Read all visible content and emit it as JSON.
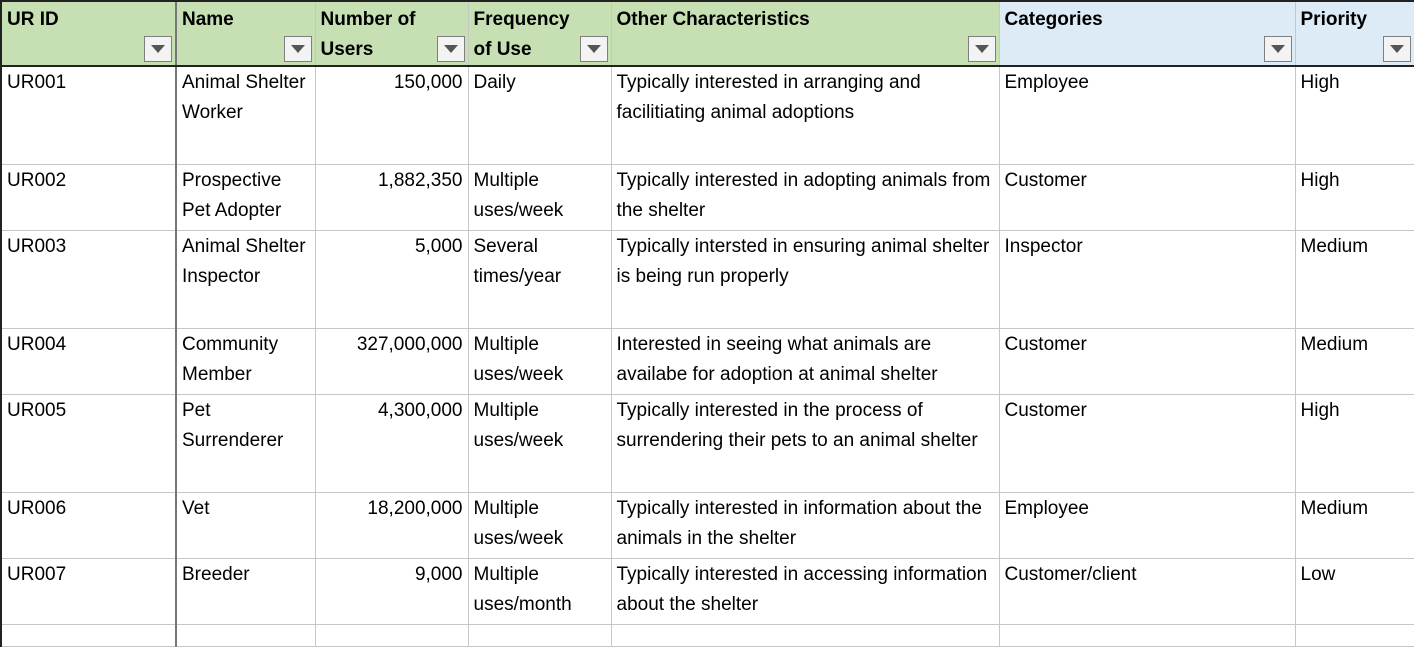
{
  "columns": [
    {
      "label": "UR ID"
    },
    {
      "label": "Name"
    },
    {
      "label": "Number of Users"
    },
    {
      "label": "Frequency of Use"
    },
    {
      "label": "Other Characteristics"
    },
    {
      "label": "Categories"
    },
    {
      "label": "Priority"
    }
  ],
  "rows": [
    {
      "id": "UR001",
      "name": "Animal Shelter Worker",
      "users": "150,000",
      "frequency": "Daily",
      "characteristics": "Typically interested in arranging and facilitiating animal adoptions",
      "category": "Employee",
      "priority": "High"
    },
    {
      "id": "UR002",
      "name": "Prospective Pet Adopter",
      "users": "1,882,350",
      "frequency": "Multiple uses/week",
      "characteristics": "Typically interested in adopting animals from the shelter",
      "category": "Customer",
      "priority": "High"
    },
    {
      "id": "UR003",
      "name": "Animal Shelter Inspector",
      "users": "5,000",
      "frequency": "Several times/year",
      "characteristics": "Typically intersted in ensuring animal shelter is being run properly",
      "category": "Inspector",
      "priority": "Medium"
    },
    {
      "id": "UR004",
      "name": "Community Member",
      "users": "327,000,000",
      "frequency": "Multiple uses/week",
      "characteristics": "Interested in seeing what animals are availabe for adoption at animal shelter",
      "category": "Customer",
      "priority": "Medium"
    },
    {
      "id": "UR005",
      "name": "Pet Surrenderer",
      "users": "4,300,000",
      "frequency": "Multiple uses/week",
      "characteristics": "Typically interested in the process of surrendering their pets to an animal shelter",
      "category": "Customer",
      "priority": "High"
    },
    {
      "id": "UR006",
      "name": "Vet",
      "users": "18,200,000",
      "frequency": "Multiple uses/week",
      "characteristics": "Typically interested in information about the animals in the shelter",
      "category": "Employee",
      "priority": "Medium"
    },
    {
      "id": "UR007",
      "name": "Breeder",
      "users": "9,000",
      "frequency": "Multiple uses/month",
      "characteristics": "Typically interested in accessing information about the shelter",
      "category": "Customer/client",
      "priority": "Low"
    }
  ],
  "colors": {
    "header_green": "#c6e0b4",
    "header_blue": "#ddebf7",
    "gridline": "#c7c7c7"
  },
  "icons": {
    "filter": "dropdown-arrow-icon"
  }
}
